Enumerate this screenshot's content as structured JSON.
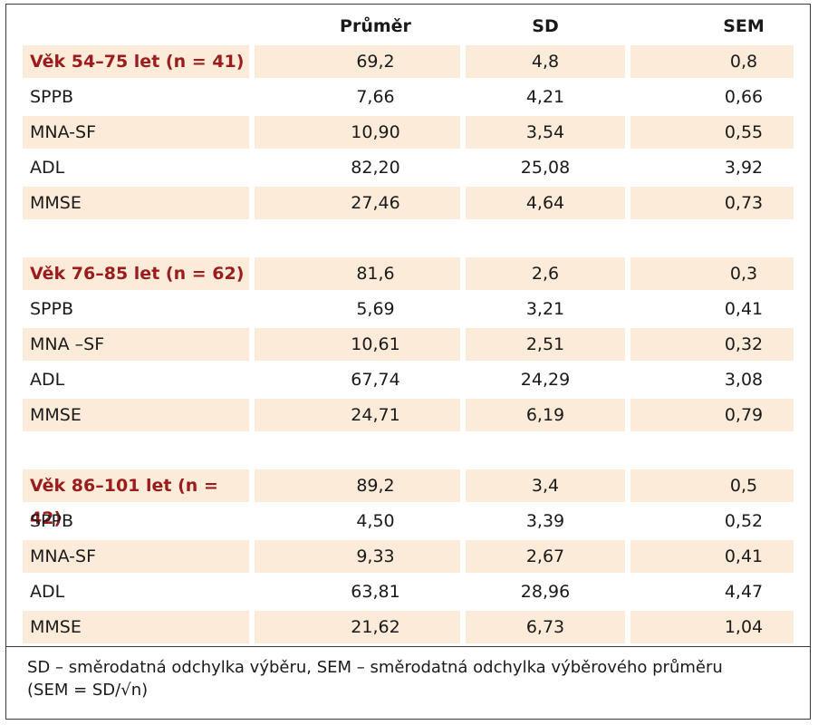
{
  "table": {
    "columns": [
      "Průměr",
      "SD",
      "SEM"
    ],
    "groups": [
      {
        "label": "Věk 54–75 let (n = 41)",
        "values": [
          "69,2",
          "4,8",
          "0,8"
        ],
        "rows": [
          {
            "label": "SPPB",
            "values": [
              "7,66",
              "4,21",
              "0,66"
            ]
          },
          {
            "label": "MNA-SF",
            "values": [
              "10,90",
              "3,54",
              "0,55"
            ]
          },
          {
            "label": "ADL",
            "values": [
              "82,20",
              "25,08",
              "3,92"
            ]
          },
          {
            "label": "MMSE",
            "values": [
              "27,46",
              "4,64",
              "0,73"
            ]
          }
        ]
      },
      {
        "label": "Věk 76–85 let (n = 62)",
        "values": [
          "81,6",
          "2,6",
          "0,3"
        ],
        "rows": [
          {
            "label": "SPPB",
            "values": [
              "5,69",
              "3,21",
              "0,41"
            ]
          },
          {
            "label": "MNA –SF",
            "values": [
              "10,61",
              "2,51",
              "0,32"
            ]
          },
          {
            "label": "ADL",
            "values": [
              "67,74",
              "24,29",
              "3,08"
            ]
          },
          {
            "label": "MMSE",
            "values": [
              "24,71",
              "6,19",
              "0,79"
            ]
          }
        ]
      },
      {
        "label": "Věk 86–101 let (n = 42)",
        "values": [
          "89,2",
          "3,4",
          "0,5"
        ],
        "rows": [
          {
            "label": "SPPB",
            "values": [
              "4,50",
              "3,39",
              "0,52"
            ]
          },
          {
            "label": "MNA-SF",
            "values": [
              "9,33",
              "2,67",
              "0,41"
            ]
          },
          {
            "label": "ADL",
            "values": [
              "63,81",
              "28,96",
              "4,47"
            ]
          },
          {
            "label": "MMSE",
            "values": [
              "21,62",
              "6,73",
              "1,04"
            ]
          }
        ]
      }
    ]
  },
  "footnote": {
    "line1": "SD – směrodatná odchylka výběru, SEM – směrodatná odchylka výběrového průměru",
    "line2": "(SEM = SD/√n)"
  },
  "colors": {
    "shade": "#fcebd9",
    "group_label": "#9b1c1c",
    "border": "#3a3a3a"
  }
}
